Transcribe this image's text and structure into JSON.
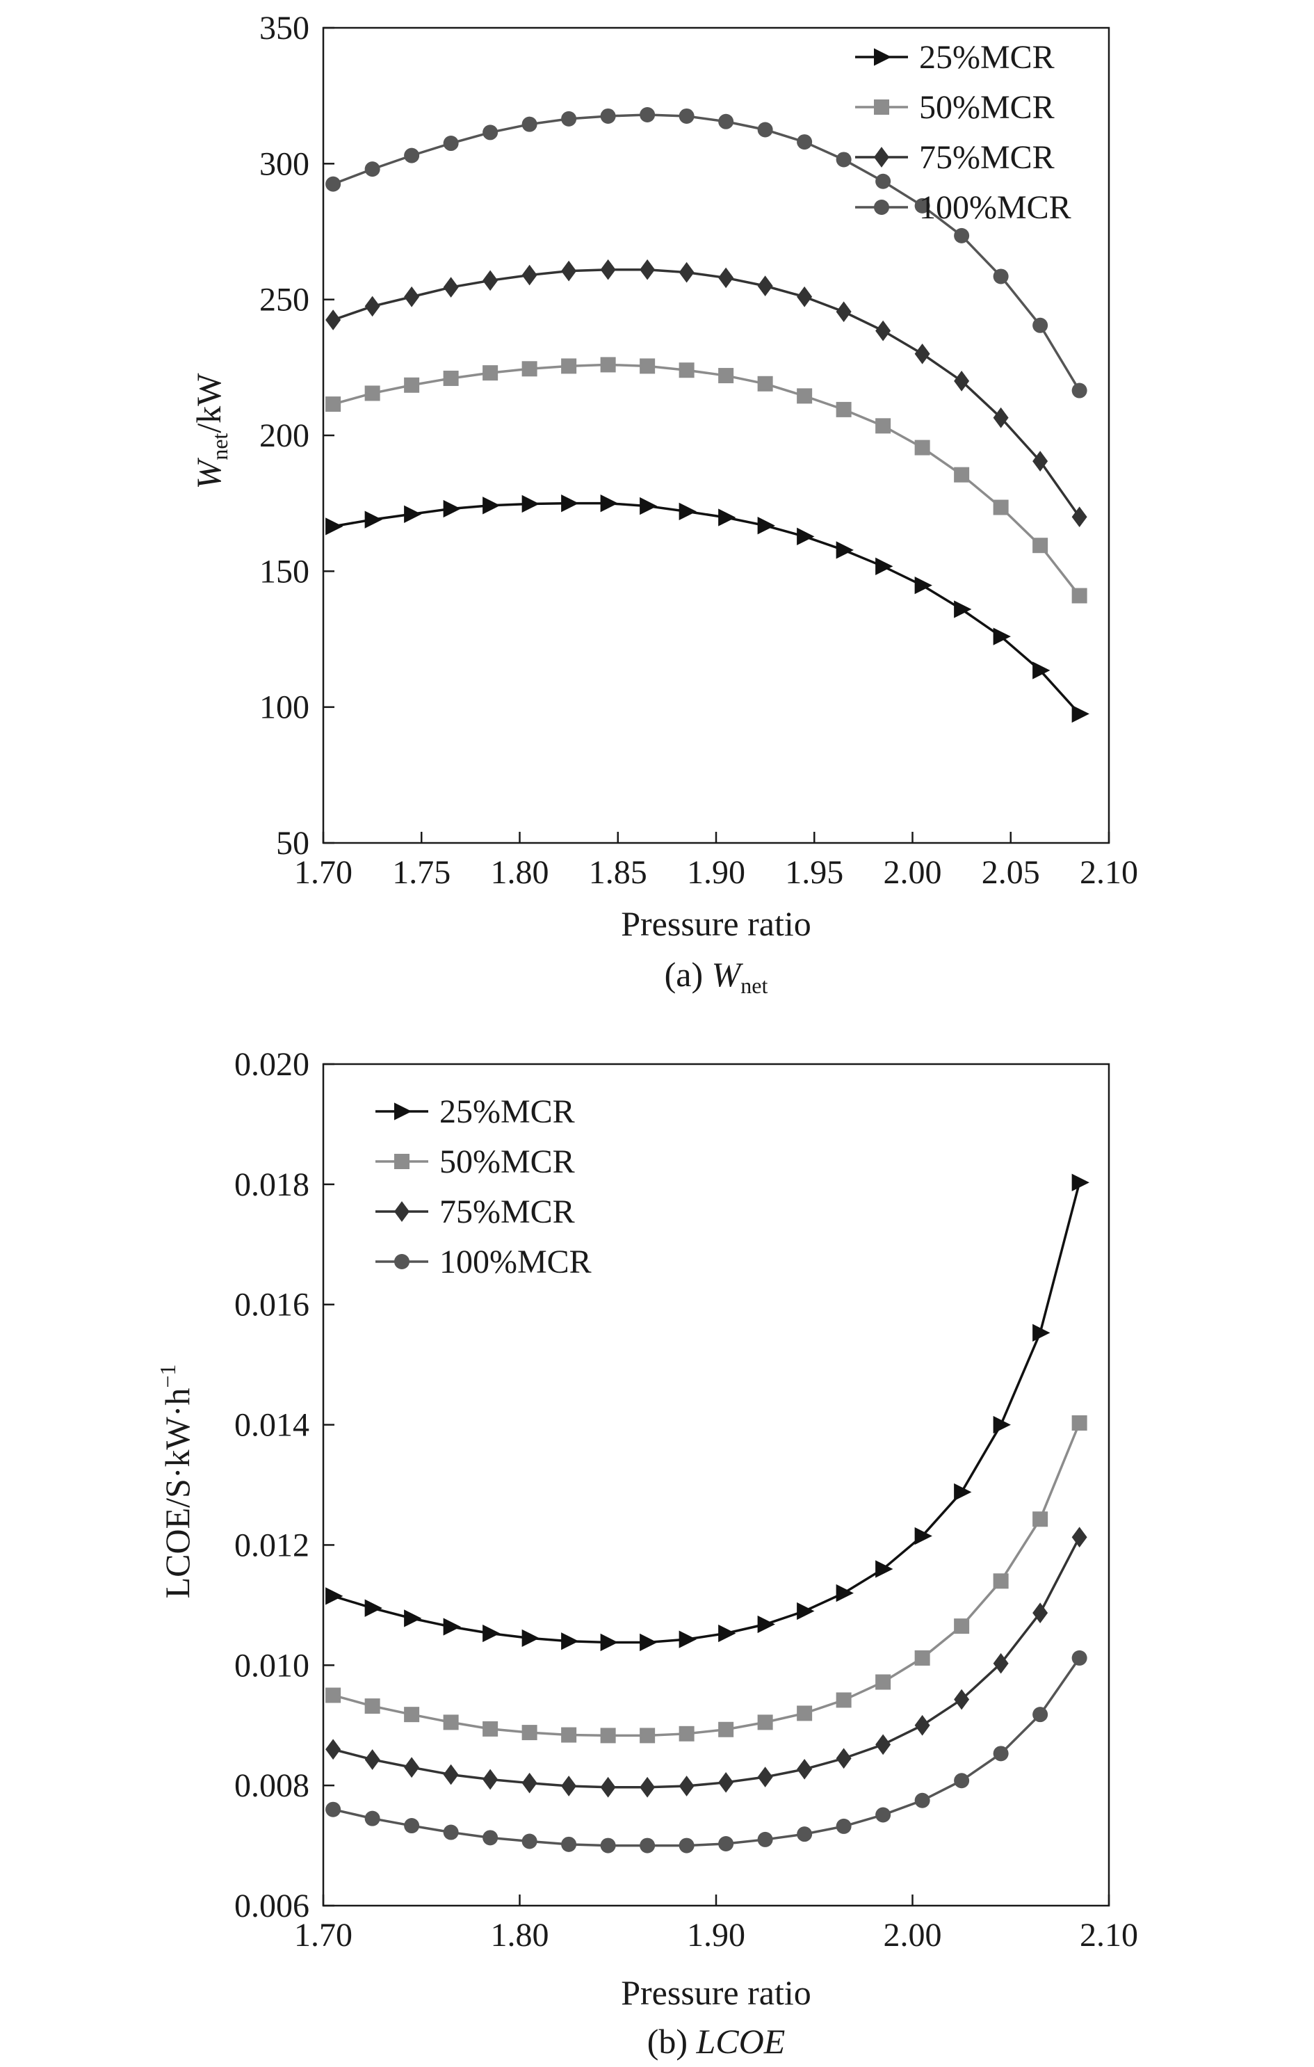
{
  "chart_data": [
    {
      "type": "line",
      "caption": {
        "prefix": "(a) ",
        "main": "W",
        "sub": "net"
      },
      "xlabel": "Pressure ratio",
      "ylabel": {
        "main": "W",
        "sub": "net",
        "suffix": "/kW"
      },
      "xlim": [
        1.7,
        2.1
      ],
      "ylim": [
        50,
        350
      ],
      "xticks": [
        1.7,
        1.75,
        1.8,
        1.85,
        1.9,
        1.95,
        2.0,
        2.05,
        2.1
      ],
      "xtick_labels": [
        "1.70",
        "1.75",
        "1.80",
        "1.85",
        "1.90",
        "1.95",
        "2.00",
        "2.05",
        "2.10"
      ],
      "yticks": [
        50,
        100,
        150,
        200,
        250,
        300,
        350
      ],
      "ytick_labels": [
        "50",
        "100",
        "150",
        "200",
        "250",
        "300",
        "350"
      ],
      "legend_position": "top-right",
      "grid": false,
      "x": [
        1.705,
        1.725,
        1.745,
        1.765,
        1.785,
        1.805,
        1.825,
        1.845,
        1.865,
        1.885,
        1.905,
        1.925,
        1.945,
        1.965,
        1.985,
        2.005,
        2.025,
        2.045,
        2.065,
        2.085
      ],
      "series": [
        {
          "name": "25%MCR",
          "marker": "triangle-right",
          "color": "#111111",
          "values": [
            166.5,
            169.0,
            171.0,
            173.0,
            174.2,
            174.8,
            175.0,
            175.0,
            174.0,
            172.0,
            169.8,
            166.8,
            162.8,
            157.8,
            151.8,
            144.8,
            136.0,
            126.0,
            113.5,
            97.5
          ]
        },
        {
          "name": "50%MCR",
          "marker": "square",
          "color": "#8c8c8c",
          "values": [
            211.5,
            215.5,
            218.5,
            221.0,
            223.0,
            224.5,
            225.5,
            226.0,
            225.5,
            224.0,
            222.0,
            219.0,
            214.5,
            209.5,
            203.5,
            195.5,
            185.5,
            173.5,
            159.5,
            141.0
          ]
        },
        {
          "name": "75%MCR",
          "marker": "diamond",
          "color": "#333333",
          "values": [
            242.5,
            247.5,
            251.0,
            254.5,
            257.0,
            259.0,
            260.5,
            261.0,
            261.0,
            260.0,
            258.0,
            255.0,
            251.0,
            245.5,
            238.5,
            230.0,
            220.0,
            206.5,
            190.5,
            170.0
          ]
        },
        {
          "name": "100%MCR",
          "marker": "circle",
          "color": "#555555",
          "values": [
            292.5,
            298.0,
            303.0,
            307.5,
            311.5,
            314.5,
            316.5,
            317.5,
            318.0,
            317.5,
            315.5,
            312.5,
            308.0,
            301.5,
            293.5,
            284.5,
            273.5,
            258.5,
            240.5,
            216.5
          ]
        }
      ]
    },
    {
      "type": "line",
      "caption": {
        "prefix": "(b) ",
        "main": "LCOE",
        "sub": ""
      },
      "xlabel": "Pressure ratio",
      "ylabel": {
        "main": "LCOE/S·kW·h",
        "sup": "−1"
      },
      "xlim": [
        1.7,
        2.1
      ],
      "ylim": [
        0.006,
        0.02
      ],
      "xticks": [
        1.7,
        1.8,
        1.9,
        2.0,
        2.1
      ],
      "xtick_labels": [
        "1.70",
        "1.80",
        "1.90",
        "2.00",
        "2.10"
      ],
      "yticks": [
        0.006,
        0.008,
        0.01,
        0.012,
        0.014,
        0.016,
        0.018,
        0.02
      ],
      "ytick_labels": [
        "0.006",
        "0.008",
        "0.010",
        "0.012",
        "0.014",
        "0.016",
        "0.018",
        "0.020"
      ],
      "legend_position": "top-left",
      "grid": false,
      "x": [
        1.705,
        1.725,
        1.745,
        1.765,
        1.785,
        1.805,
        1.825,
        1.845,
        1.865,
        1.885,
        1.905,
        1.925,
        1.945,
        1.965,
        1.985,
        2.005,
        2.025,
        2.045,
        2.065,
        2.085
      ],
      "series": [
        {
          "name": "25%MCR",
          "marker": "triangle-right",
          "color": "#111111",
          "values": [
            0.01115,
            0.01095,
            0.01078,
            0.01064,
            0.01053,
            0.01045,
            0.0104,
            0.01038,
            0.01038,
            0.01043,
            0.01053,
            0.01068,
            0.0109,
            0.0112,
            0.0116,
            0.01215,
            0.01288,
            0.014,
            0.01553,
            0.01803
          ]
        },
        {
          "name": "50%MCR",
          "marker": "square",
          "color": "#8c8c8c",
          "values": [
            0.0095,
            0.00932,
            0.00918,
            0.00905,
            0.00894,
            0.00888,
            0.00884,
            0.00883,
            0.00883,
            0.00886,
            0.00893,
            0.00905,
            0.0092,
            0.00942,
            0.00972,
            0.01012,
            0.01065,
            0.0114,
            0.01243,
            0.01403
          ]
        },
        {
          "name": "75%MCR",
          "marker": "diamond",
          "color": "#333333",
          "values": [
            0.0086,
            0.00843,
            0.0083,
            0.00818,
            0.0081,
            0.00804,
            0.00799,
            0.00797,
            0.00797,
            0.00799,
            0.00805,
            0.00814,
            0.00827,
            0.00845,
            0.00868,
            0.009,
            0.00943,
            0.01003,
            0.01087,
            0.01213
          ]
        },
        {
          "name": "100%MCR",
          "marker": "circle",
          "color": "#555555",
          "values": [
            0.0076,
            0.00745,
            0.00733,
            0.00722,
            0.00713,
            0.00707,
            0.00702,
            0.007,
            0.007,
            0.007,
            0.00703,
            0.0071,
            0.00719,
            0.00732,
            0.00751,
            0.00775,
            0.00808,
            0.00853,
            0.00918,
            0.01012
          ]
        }
      ]
    }
  ]
}
